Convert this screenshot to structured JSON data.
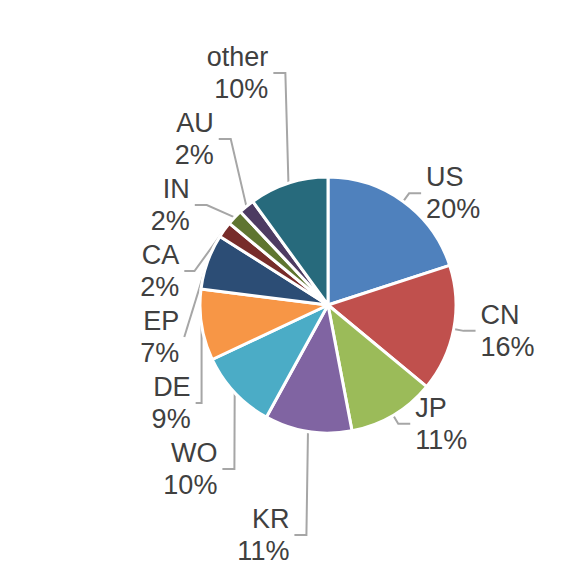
{
  "chart_data": {
    "type": "pie",
    "categories": [
      "US",
      "CN",
      "JP",
      "KR",
      "WO",
      "DE",
      "EP",
      "CA",
      "IN",
      "AU",
      "other"
    ],
    "values": [
      20,
      16,
      11,
      11,
      10,
      9,
      7,
      2,
      2,
      2,
      10
    ],
    "value_labels": [
      "20%",
      "16%",
      "11%",
      "11%",
      "10%",
      "9%",
      "7%",
      "2%",
      "2%",
      "2%",
      "10%"
    ],
    "colors": [
      "#4f81bd",
      "#c0504d",
      "#9bbb59",
      "#8064a2",
      "#4bacc6",
      "#f79646",
      "#2c4d75",
      "#772c2a",
      "#5f7530",
      "#4d3b62",
      "#276a7c"
    ],
    "data_labels": true
  }
}
